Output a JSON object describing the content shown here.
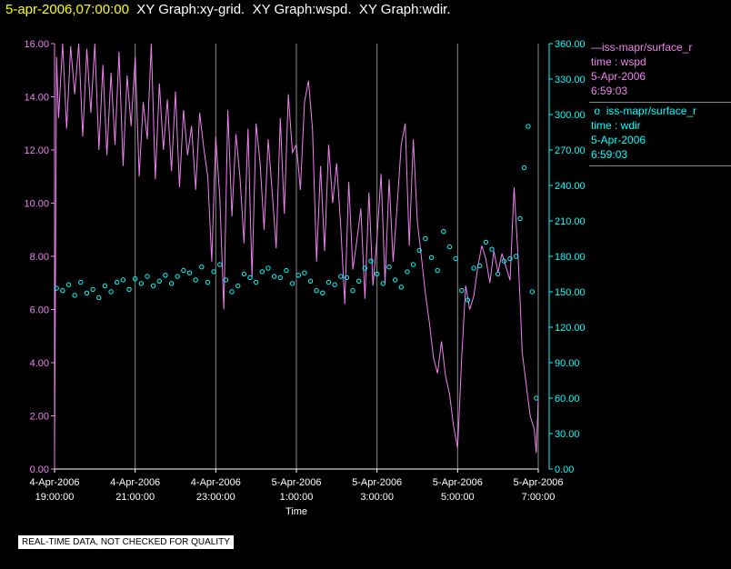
{
  "header": {
    "date": "5-apr-2006,07:00:00",
    "graphs": [
      "XY Graph:xy-grid.",
      "XY Graph:wspd.",
      "XY Graph:wdir."
    ]
  },
  "legend": [
    {
      "name": "iss-mapr/surface_r",
      "line1": "time : wspd",
      "line2": "5-Apr-2006",
      "line3": "6:59:03",
      "color": "#ee82ee",
      "marker": "line"
    },
    {
      "name": "iss-mapr/surface_r",
      "line1": "time : wdir",
      "line2": "5-Apr-2006",
      "line3": "6:59:03",
      "color": "#00ffff",
      "marker": "circle"
    }
  ],
  "quality_note": "REAL-TIME DATA, NOT CHECKED FOR QUALITY",
  "chart_data": {
    "type": "line",
    "xlabel": "Time",
    "x_ticks": [
      {
        "top": "4-Apr-2006",
        "bottom": "19:00:00",
        "h": 0
      },
      {
        "top": "4-Apr-2006",
        "bottom": "21:00:00",
        "h": 2
      },
      {
        "top": "4-Apr-2006",
        "bottom": "23:00:00",
        "h": 4
      },
      {
        "top": "5-Apr-2006",
        "bottom": "1:00:00",
        "h": 6
      },
      {
        "top": "5-Apr-2006",
        "bottom": "3:00:00",
        "h": 8
      },
      {
        "top": "5-Apr-2006",
        "bottom": "5:00:00",
        "h": 10
      },
      {
        "top": "5-Apr-2006",
        "bottom": "7:00:00",
        "h": 12
      }
    ],
    "xlim_hours": [
      0,
      12
    ],
    "left_axis": {
      "label": "wspd",
      "ylim": [
        0,
        16
      ],
      "ticks": [
        "0.00",
        "2.00",
        "4.00",
        "6.00",
        "8.00",
        "10.00",
        "12.00",
        "14.00",
        "16.00"
      ],
      "color": "#ee82ee"
    },
    "right_axis": {
      "label": "wdir",
      "ylim": [
        0,
        360
      ],
      "ticks": [
        "0.00",
        "30.00",
        "60.00",
        "90.00",
        "120.00",
        "150.00",
        "180.00",
        "210.00",
        "240.00",
        "270.00",
        "300.00",
        "330.00",
        "360.00"
      ],
      "color": "#00ffff"
    },
    "series": [
      {
        "name": "wspd",
        "axis": "left",
        "style": "line",
        "color": "#ee82ee",
        "x": [
          0,
          0.05,
          0.1,
          0.2,
          0.3,
          0.4,
          0.5,
          0.6,
          0.7,
          0.8,
          0.9,
          1.0,
          1.1,
          1.2,
          1.3,
          1.4,
          1.5,
          1.6,
          1.7,
          1.8,
          1.9,
          2.0,
          2.1,
          2.2,
          2.3,
          2.4,
          2.5,
          2.6,
          2.7,
          2.8,
          2.9,
          3.0,
          3.1,
          3.2,
          3.3,
          3.4,
          3.5,
          3.6,
          3.7,
          3.8,
          3.9,
          4.0,
          4.1,
          4.2,
          4.3,
          4.4,
          4.5,
          4.6,
          4.7,
          4.8,
          4.9,
          5.0,
          5.1,
          5.2,
          5.3,
          5.4,
          5.5,
          5.6,
          5.7,
          5.8,
          5.9,
          6.0,
          6.1,
          6.2,
          6.3,
          6.4,
          6.5,
          6.6,
          6.7,
          6.8,
          6.9,
          7.0,
          7.1,
          7.2,
          7.3,
          7.4,
          7.5,
          7.6,
          7.7,
          7.8,
          7.9,
          8.0,
          8.1,
          8.2,
          8.3,
          8.4,
          8.5,
          8.6,
          8.7,
          8.8,
          8.9,
          9.0,
          9.1,
          9.2,
          9.3,
          9.4,
          9.5,
          9.6,
          9.7,
          9.8,
          9.9,
          10.0,
          10.05,
          10.1,
          10.2,
          10.3,
          10.4,
          10.5,
          10.6,
          10.7,
          10.8,
          10.9,
          11.0,
          11.1,
          11.2,
          11.3,
          11.4,
          11.5,
          11.55,
          11.6,
          11.7,
          11.8,
          11.9,
          11.95,
          12.0
        ],
        "values": [
          0.5,
          15.5,
          13.2,
          16,
          12.8,
          15.9,
          14.1,
          16,
          12.5,
          15.8,
          13.4,
          16,
          12.0,
          15.2,
          11.8,
          14.9,
          12.2,
          15.7,
          11.4,
          14.8,
          12.9,
          15.5,
          11.0,
          13.8,
          12.4,
          16,
          10.9,
          14.5,
          12.0,
          13.9,
          11.2,
          14.2,
          10.6,
          13.5,
          11.8,
          12.9,
          10.5,
          13.4,
          12.1,
          11.0,
          7.8,
          12.5,
          10.2,
          6.0,
          13.5,
          9.5,
          12.6,
          11.0,
          8.5,
          12.8,
          7.2,
          13.0,
          11.5,
          9.0,
          12.4,
          10.4,
          8.3,
          13.2,
          9.6,
          14.1,
          11.9,
          12.2,
          10.5,
          13.8,
          14.6,
          12.8,
          7.8,
          11.4,
          8.2,
          12.2,
          10.0,
          11.5,
          9.1,
          6.2,
          10.8,
          7.5,
          8.6,
          9.8,
          6.4,
          10.4,
          6.9,
          8.7,
          11.1,
          7.0,
          10.9,
          7.8,
          9.9,
          12.2,
          13.0,
          8.4,
          12.4,
          9.3,
          8.0,
          6.6,
          5.5,
          4.2,
          3.6,
          4.8,
          3.5,
          2.8,
          1.6,
          0.8,
          2.5,
          4.2,
          6.9,
          6.0,
          6.5,
          7.6,
          8.4,
          7.9,
          7.0,
          8.2,
          7.4,
          8.1,
          7.6,
          7.1,
          10.6,
          8.0,
          6.3,
          4.4,
          3.2,
          2.0,
          1.5,
          0.6,
          2.6
        ]
      },
      {
        "name": "wdir",
        "axis": "right",
        "style": "circle",
        "color": "#00ffff",
        "x": [
          0.05,
          0.2,
          0.35,
          0.5,
          0.65,
          0.8,
          0.95,
          1.1,
          1.25,
          1.4,
          1.55,
          1.7,
          1.85,
          2.0,
          2.15,
          2.3,
          2.45,
          2.6,
          2.75,
          2.9,
          3.05,
          3.2,
          3.35,
          3.5,
          3.65,
          3.8,
          3.95,
          4.1,
          4.25,
          4.4,
          4.55,
          4.7,
          4.85,
          5.0,
          5.15,
          5.3,
          5.45,
          5.6,
          5.75,
          5.9,
          6.05,
          6.2,
          6.35,
          6.5,
          6.65,
          6.8,
          6.95,
          7.1,
          7.25,
          7.4,
          7.55,
          7.7,
          7.85,
          8.0,
          8.15,
          8.3,
          8.45,
          8.6,
          8.75,
          8.9,
          9.05,
          9.2,
          9.35,
          9.5,
          9.65,
          9.8,
          9.95,
          10.1,
          10.25,
          10.4,
          10.55,
          10.7,
          10.85,
          11.0,
          11.15,
          11.3,
          11.45,
          11.55,
          11.65,
          11.75,
          11.85,
          11.95
        ],
        "values": [
          153,
          151,
          156,
          147,
          158,
          149,
          152,
          145,
          155,
          150,
          158,
          160,
          152,
          161,
          157,
          163,
          155,
          159,
          164,
          157,
          163,
          168,
          166,
          160,
          171,
          158,
          167,
          173,
          160,
          150,
          155,
          165,
          162,
          158,
          167,
          170,
          163,
          162,
          168,
          157,
          164,
          166,
          159,
          151,
          149,
          158,
          156,
          163,
          162,
          151,
          159,
          170,
          176,
          165,
          157,
          171,
          160,
          154,
          167,
          173,
          185,
          195,
          179,
          168,
          201,
          188,
          178,
          151,
          143,
          170,
          172,
          192,
          186,
          165,
          176,
          178,
          180,
          212,
          255,
          290,
          150,
          60
        ]
      }
    ]
  }
}
